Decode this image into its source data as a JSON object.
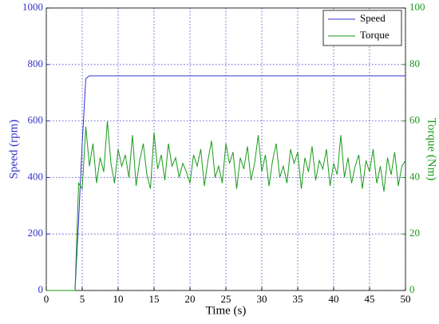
{
  "chart_data": {
    "type": "line",
    "x_label": "Time (s)",
    "y_label": "Speed (rpm)",
    "y2_label": "Torque (Nm)",
    "x": [
      0,
      4,
      4.5,
      5,
      5.5,
      6,
      6.5,
      7,
      7.5,
      8,
      8.5,
      9,
      9.5,
      10,
      10.5,
      11,
      11.5,
      12,
      12.5,
      13,
      13.5,
      14,
      14.5,
      15,
      15.5,
      16,
      16.5,
      17,
      17.5,
      18,
      18.5,
      19,
      19.5,
      20,
      20.5,
      21,
      21.5,
      22,
      22.5,
      23,
      23.5,
      24,
      24.5,
      25,
      25.5,
      26,
      26.5,
      27,
      27.5,
      28,
      28.5,
      29,
      29.5,
      30,
      30.5,
      31,
      31.5,
      32,
      32.5,
      33,
      33.5,
      34,
      34.5,
      35,
      35.5,
      36,
      36.5,
      37,
      37.5,
      38,
      38.5,
      39,
      39.5,
      40,
      40.5,
      41,
      41.5,
      42,
      42.5,
      43,
      43.5,
      44,
      44.5,
      45,
      45.5,
      46,
      46.5,
      47,
      47.5,
      48,
      48.5,
      49,
      49.5,
      50
    ],
    "series": [
      {
        "name": "Speed",
        "color": "#3333cc",
        "values": [
          0,
          0,
          250,
          520,
          750,
          760,
          760,
          760,
          760,
          760,
          760,
          760,
          760,
          760,
          760,
          760,
          760,
          760,
          760,
          760,
          760,
          760,
          760,
          760,
          760,
          760,
          760,
          760,
          760,
          760,
          760,
          760,
          760,
          760,
          760,
          760,
          760,
          760,
          760,
          760,
          760,
          760,
          760,
          760,
          760,
          760,
          760,
          760,
          760,
          760,
          760,
          760,
          760,
          760,
          760,
          760,
          760,
          760,
          760,
          760,
          760,
          760,
          760,
          760,
          760,
          760,
          760,
          760,
          760,
          760,
          760,
          760,
          760,
          760,
          760,
          760,
          760,
          760,
          760,
          760,
          760,
          760,
          760,
          760,
          760,
          760,
          760,
          760,
          760,
          760,
          760,
          760,
          760,
          760
        ]
      },
      {
        "name": "Torque",
        "color": "#1a9a1a",
        "axis": "y2",
        "values": [
          0,
          0,
          38,
          36,
          58,
          44,
          52,
          38,
          47,
          42,
          60,
          45,
          38,
          50,
          44,
          48,
          40,
          55,
          37,
          46,
          52,
          41,
          36,
          56,
          43,
          48,
          39,
          52,
          44,
          47,
          40,
          45,
          42,
          38,
          48,
          44,
          50,
          37,
          46,
          53,
          40,
          44,
          38,
          52,
          45,
          49,
          36,
          47,
          43,
          51,
          39,
          45,
          55,
          42,
          48,
          37,
          46,
          52,
          40,
          44,
          38,
          50,
          45,
          49,
          36,
          47,
          42,
          51,
          39,
          46,
          43,
          50,
          37,
          45,
          41,
          55,
          40,
          47,
          38,
          44,
          48,
          36,
          46,
          42,
          50,
          38,
          44,
          35,
          47,
          41,
          49,
          37,
          44,
          46
        ]
      }
    ],
    "xlim": [
      0,
      50
    ],
    "xticks": [
      0,
      5,
      10,
      15,
      20,
      25,
      30,
      35,
      40,
      45,
      50
    ],
    "ylim": [
      0,
      1000
    ],
    "yticks": [
      0,
      200,
      400,
      600,
      800,
      1000
    ],
    "y2lim": [
      0,
      100
    ],
    "y2ticks": [
      0,
      20,
      40,
      60,
      80,
      100
    ],
    "grid": true,
    "legend": "upper right"
  }
}
